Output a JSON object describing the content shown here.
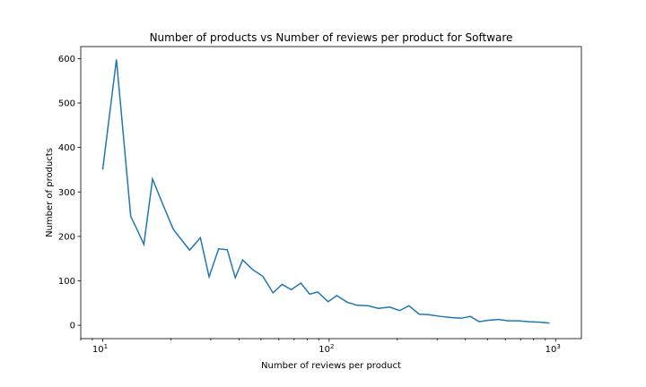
{
  "chart_data": {
    "type": "line",
    "title": "Number of products vs Number of reviews per product for  Software",
    "xlabel": "Number of reviews per product",
    "ylabel": "Number of products",
    "xscale": "log",
    "xlim": [
      8,
      1300
    ],
    "ylim": [
      -30,
      627
    ],
    "x_ticks": [
      {
        "value": 10,
        "base": "10",
        "exp": "1"
      },
      {
        "value": 100,
        "base": "10",
        "exp": "2"
      },
      {
        "value": 1000,
        "base": "10",
        "exp": "3"
      }
    ],
    "y_ticks": [
      0,
      100,
      200,
      300,
      400,
      500,
      600
    ],
    "grid": false,
    "color": "#1f77b4",
    "series": [
      {
        "x": [
          10,
          11.5,
          13.3,
          14.2,
          15.2,
          16.6,
          18.5,
          20.5,
          24.2,
          27,
          29.5,
          32.5,
          35.5,
          38.5,
          41.5,
          46,
          51,
          56.5,
          62,
          68,
          75,
          82,
          89,
          99,
          108,
          120,
          133,
          148,
          165,
          185,
          205,
          225,
          250,
          275,
          310,
          350,
          385,
          420,
          460,
          500,
          560,
          620,
          690,
          760,
          850,
          940
        ],
        "y": [
          350,
          598,
          245,
          215,
          182,
          329,
          270,
          216,
          169,
          197,
          109,
          172,
          170,
          107,
          147,
          125,
          110,
          73,
          92,
          80,
          95,
          70,
          75,
          53,
          67,
          52,
          45,
          44,
          38,
          41,
          33,
          44,
          25,
          24,
          20,
          17,
          16,
          20,
          8,
          11,
          13,
          10,
          10,
          8,
          7,
          5
        ]
      }
    ]
  }
}
